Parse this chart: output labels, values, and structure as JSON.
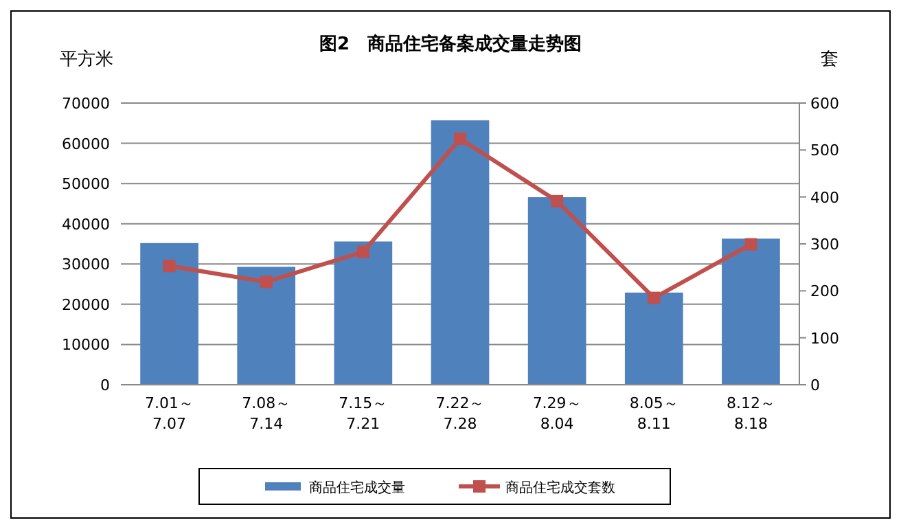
{
  "chart_data": {
    "type": "bar",
    "title": "图2　商品住宅备案成交量走势图",
    "ylabel": "平方米",
    "y2label": "套",
    "categories": [
      "7.01～\n7.07",
      "7.08～\n7.14",
      "7.15～\n7.21",
      "7.22～\n7.28",
      "7.29～\n8.04",
      "8.05～\n8.11",
      "8.12～\n8.18"
    ],
    "series": [
      {
        "name": "商品住宅成交量",
        "color": "#4f81bd",
        "values": [
          35200,
          29300,
          35600,
          65700,
          46600,
          22900,
          36300
        ]
      },
      {
        "name": "商品住宅成交套数",
        "type": "line",
        "axis": "y2",
        "color": "#c0504d",
        "values": [
          253,
          219,
          283,
          524,
          391,
          185,
          299
        ]
      }
    ],
    "ylim": [
      0,
      70000
    ],
    "yticks": [
      0,
      10000,
      20000,
      30000,
      40000,
      50000,
      60000,
      70000
    ],
    "y2lim": [
      0,
      600
    ],
    "y2ticks": [
      0,
      100,
      200,
      300,
      400,
      500,
      600
    ],
    "grid": "y",
    "legend": "bottom",
    "marker": "square"
  }
}
